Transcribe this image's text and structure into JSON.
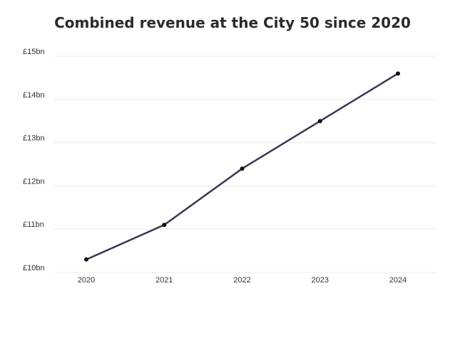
{
  "chart_data": {
    "type": "line",
    "title": "Combined revenue at the City 50 since 2020",
    "xlabel": "",
    "ylabel": "",
    "x": [
      "2020",
      "2021",
      "2022",
      "2023",
      "2024"
    ],
    "series": [
      {
        "values": [
          10.3,
          11.1,
          12.4,
          13.5,
          14.6
        ]
      }
    ],
    "ylim": [
      10,
      15
    ],
    "y_ticks": [
      10,
      11,
      12,
      13,
      14,
      15
    ],
    "y_tick_labels": [
      "£10bn",
      "£11bn",
      "£12bn",
      "£13bn",
      "£14bn",
      "£15bn"
    ],
    "grid": true,
    "legend": "none",
    "colors": {
      "line": "#3a3550",
      "point": "#111111",
      "grid": "#ececec"
    }
  }
}
